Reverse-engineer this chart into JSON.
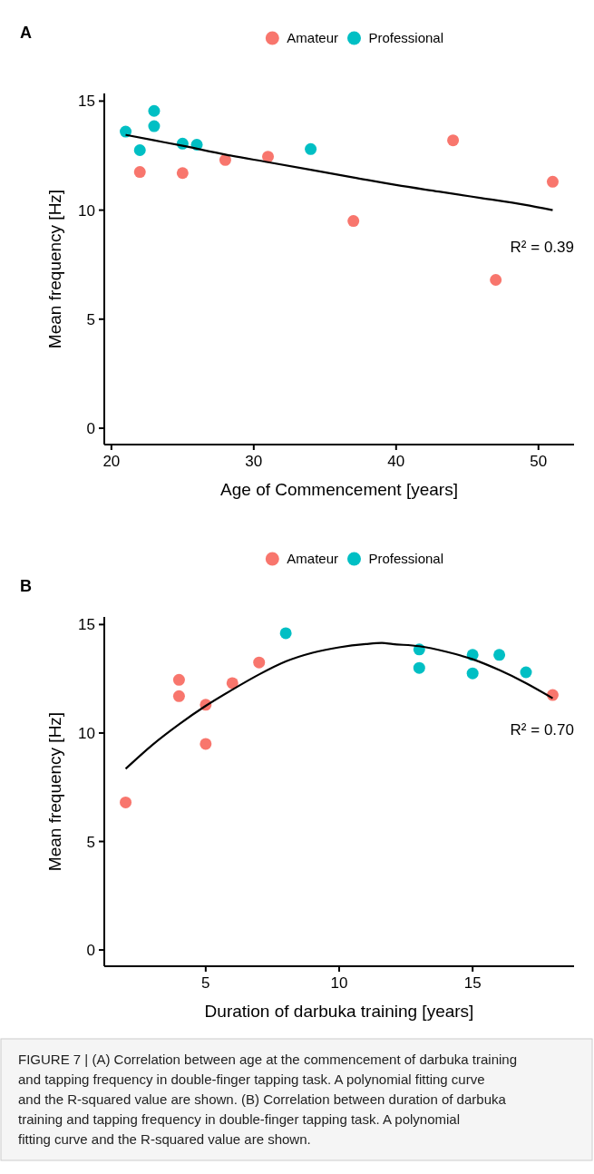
{
  "chart_data": [
    {
      "type": "scatter",
      "title": "A",
      "xlabel": "Age of Commencement [years]",
      "ylabel": "Mean frequency [Hz]",
      "xlim": [
        19.5,
        52.5
      ],
      "xticks": [
        20,
        30,
        40,
        50
      ],
      "ylim": [
        -0.75,
        15.35
      ],
      "yticks": [
        0,
        5,
        10,
        15
      ],
      "legend": "top",
      "marker": "circle",
      "grid": false,
      "annotations": [
        "R² = 0.39"
      ],
      "series": [
        {
          "name": "Amateur",
          "color": "#f8766d",
          "x": [
            22,
            25,
            28,
            31,
            37,
            44,
            47,
            51
          ],
          "values": [
            11.75,
            11.7,
            12.3,
            12.45,
            9.5,
            13.2,
            6.8,
            11.3
          ]
        },
        {
          "name": "Professional",
          "color": "#00bfc4",
          "x": [
            21,
            22,
            23,
            23,
            25,
            26,
            34
          ],
          "values": [
            13.6,
            12.75,
            14.55,
            13.85,
            13.05,
            13.0,
            12.8
          ]
        },
        {
          "type": "line",
          "color": "#000000",
          "marker": "none",
          "x": [
            21,
            23,
            25,
            28,
            31,
            34,
            37,
            40,
            43,
            46,
            49,
            51
          ],
          "values": [
            13.45,
            13.2,
            12.95,
            12.55,
            12.2,
            11.85,
            11.5,
            11.15,
            10.85,
            10.55,
            10.25,
            10.0
          ]
        }
      ]
    },
    {
      "type": "scatter",
      "title": "B",
      "xlabel": "Duration of darbuka training [years]",
      "ylabel": "Mean frequency [Hz]",
      "xlim": [
        1.2,
        18.8
      ],
      "xticks": [
        5,
        10,
        15
      ],
      "ylim": [
        -0.75,
        15.35
      ],
      "yticks": [
        0,
        5,
        10,
        15
      ],
      "legend": "top",
      "marker": "circle",
      "grid": false,
      "annotations": [
        "R² = 0.70",
        "FIGURE 7 | (A) Correlation between age at the commencement of darbuka training and tapping frequency in double-finger tapping task. A polynomial fitting curve and the R-squared value are shown. (B) Correlation between duration of darbuka training and tapping frequency in double-finger tapping task. A polynomial fitting curve and the R-squared value are shown."
      ],
      "series": [
        {
          "name": "Amateur",
          "color": "#f8766d",
          "x": [
            2,
            4,
            4,
            5,
            5,
            6,
            7,
            18
          ],
          "values": [
            6.8,
            12.45,
            11.7,
            11.3,
            9.5,
            12.3,
            13.25,
            11.75
          ]
        },
        {
          "name": "Professional",
          "color": "#00bfc4",
          "x": [
            8,
            13,
            13,
            15,
            15,
            16,
            17
          ],
          "values": [
            14.6,
            13.85,
            13.0,
            13.6,
            12.75,
            13.6,
            12.8
          ]
        },
        {
          "type": "line",
          "color": "#000000",
          "marker": "none",
          "x": [
            2,
            3,
            4,
            5,
            6,
            7,
            8,
            9,
            10,
            11,
            11.6,
            12,
            13,
            14,
            15,
            16,
            17,
            18
          ],
          "values": [
            8.35,
            9.45,
            10.4,
            11.25,
            12.0,
            12.7,
            13.3,
            13.7,
            13.95,
            14.1,
            14.15,
            14.1,
            14.0,
            13.75,
            13.4,
            12.9,
            12.3,
            11.6
          ]
        }
      ]
    }
  ]
}
